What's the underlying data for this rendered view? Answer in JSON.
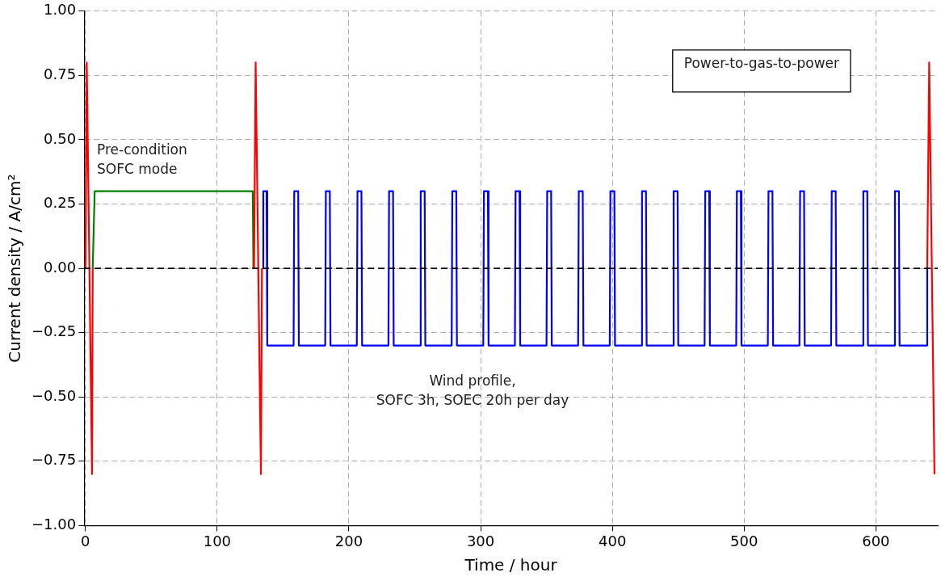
{
  "chart_data": {
    "type": "line",
    "xlabel": "Time / hour",
    "ylabel": "Current density / A/cm²",
    "xlim": [
      -1,
      647
    ],
    "xticks": [
      0,
      100,
      200,
      300,
      400,
      500,
      600
    ],
    "ylim": [
      -1,
      1
    ],
    "yticks": [
      {
        "value": -1,
        "label": "−1.00"
      },
      {
        "value": -0.75,
        "label": "−0.75"
      },
      {
        "value": -0.5,
        "label": "−0.50"
      },
      {
        "value": -0.25,
        "label": "−0.25"
      },
      {
        "value": 0,
        "label": "0.00"
      },
      {
        "value": 0.25,
        "label": "0.25"
      },
      {
        "value": 0.5,
        "label": "0.50"
      },
      {
        "value": 0.75,
        "label": "0.75"
      },
      {
        "value": 1,
        "label": "1.00"
      }
    ],
    "grid": true,
    "legend": false,
    "marker": "none",
    "line_style": "solid",
    "ref_lines": [
      {
        "axis": "y",
        "value": 0,
        "color": "#000000",
        "line_style": "dashed"
      }
    ],
    "annotations": [
      "Pre-condition\nSOFC mode",
      "Wind profile,\nSOFC 3h, SOEC 20h per day",
      "Power-to-gas-to-power"
    ],
    "series": [
      {
        "color": "#ff0000",
        "x": [
          0,
          1,
          5,
          5.5,
          60,
          128,
          129.2,
          133.2,
          134,
          400,
          639,
          640.5,
          644.5
        ],
        "values": [
          0,
          0.8,
          -0.8,
          0,
          null,
          0,
          0.8,
          -0.8,
          0,
          null,
          0,
          0.8,
          -0.8
        ]
      },
      {
        "color": "#008000",
        "x": [
          5.5,
          7,
          127,
          127.5
        ],
        "values": [
          0,
          0.3,
          0.3,
          0
        ]
      },
      {
        "color": "#0000ff",
        "x": [
          134.5,
          135,
          137.5,
          138,
          158,
          158.5,
          161.5,
          162,
          182,
          182.5,
          185.5,
          186,
          206,
          206.5,
          209.5,
          210,
          230,
          230.5,
          233.5,
          234,
          254,
          254.5,
          257.5,
          258,
          278,
          278.5,
          281.5,
          282,
          302,
          302.5,
          305.5,
          306,
          326,
          326.5,
          329.5,
          330,
          350,
          350.5,
          353.5,
          354,
          374,
          374.5,
          377.5,
          378,
          398,
          398.5,
          401.5,
          402,
          422,
          422.5,
          425.5,
          426,
          446,
          446.5,
          449.5,
          450,
          470,
          470.5,
          473.5,
          474,
          494,
          494.5,
          497.5,
          498,
          518,
          518.5,
          521.5,
          522,
          542,
          542.5,
          545.5,
          546,
          566,
          566.5,
          569.5,
          570,
          590,
          590.5,
          593.5,
          594,
          614,
          614.5,
          617.5,
          618,
          639,
          639
        ],
        "values": [
          0,
          0.3,
          0.3,
          -0.3,
          -0.3,
          0.3,
          0.3,
          -0.3,
          -0.3,
          0.3,
          0.3,
          -0.3,
          -0.3,
          0.3,
          0.3,
          -0.3,
          -0.3,
          0.3,
          0.3,
          -0.3,
          -0.3,
          0.3,
          0.3,
          -0.3,
          -0.3,
          0.3,
          0.3,
          -0.3,
          -0.3,
          0.3,
          0.3,
          -0.3,
          -0.3,
          0.3,
          0.3,
          -0.3,
          -0.3,
          0.3,
          0.3,
          -0.3,
          -0.3,
          0.3,
          0.3,
          -0.3,
          -0.3,
          0.3,
          0.3,
          -0.3,
          -0.3,
          0.3,
          0.3,
          -0.3,
          -0.3,
          0.3,
          0.3,
          -0.3,
          -0.3,
          0.3,
          0.3,
          -0.3,
          -0.3,
          0.3,
          0.3,
          -0.3,
          -0.3,
          0.3,
          0.3,
          -0.3,
          -0.3,
          0.3,
          0.3,
          -0.3,
          -0.3,
          0.3,
          0.3,
          -0.3,
          -0.3,
          0.3,
          0.3,
          -0.3,
          -0.3,
          0.3,
          0.3,
          -0.3,
          -0.3,
          0
        ]
      }
    ]
  }
}
